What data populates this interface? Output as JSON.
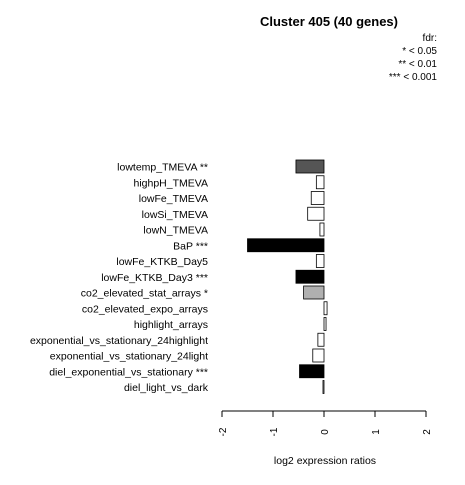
{
  "chart_data": {
    "type": "bar",
    "orientation": "horizontal",
    "title": "Cluster 405 (40 genes)",
    "xlabel": "log2 expression ratios",
    "xlim": [
      -2,
      2
    ],
    "xticks": [
      "-2",
      "-1",
      "0",
      "1",
      "2"
    ],
    "legend": {
      "title": "fdr:",
      "entries": [
        "* < 0.05",
        "** < 0.01",
        "*** < 0.001"
      ]
    },
    "colors": {
      "black": "#000000",
      "dark": "#555555",
      "light": "#b0b0b0",
      "white": "#ffffff"
    },
    "bars": [
      {
        "label": "lowtemp_TMEVA **",
        "value": -0.55,
        "fill": "dark"
      },
      {
        "label": "highpH_TMEVA",
        "value": -0.15,
        "fill": "white"
      },
      {
        "label": "lowFe_TMEVA",
        "value": -0.25,
        "fill": "white"
      },
      {
        "label": "lowSi_TMEVA",
        "value": -0.32,
        "fill": "white"
      },
      {
        "label": "lowN_TMEVA",
        "value": -0.08,
        "fill": "white"
      },
      {
        "label": "BaP ***",
        "value": -1.5,
        "fill": "black"
      },
      {
        "label": "lowFe_KTKB_Day5",
        "value": -0.15,
        "fill": "white"
      },
      {
        "label": "lowFe_KTKB_Day3 ***",
        "value": -0.55,
        "fill": "black"
      },
      {
        "label": "co2_elevated_stat_arrays *",
        "value": -0.4,
        "fill": "light"
      },
      {
        "label": "co2_elevated_expo_arrays",
        "value": 0.06,
        "fill": "white"
      },
      {
        "label": "highlight_arrays",
        "value": 0.04,
        "fill": "white"
      },
      {
        "label": "exponential_vs_stationary_24highlight",
        "value": -0.12,
        "fill": "white"
      },
      {
        "label": "exponential_vs_stationary_24light",
        "value": -0.22,
        "fill": "white"
      },
      {
        "label": "diel_exponential_vs_stationary ***",
        "value": -0.48,
        "fill": "black"
      },
      {
        "label": "diel_light_vs_dark",
        "value": -0.02,
        "fill": "white"
      }
    ]
  }
}
